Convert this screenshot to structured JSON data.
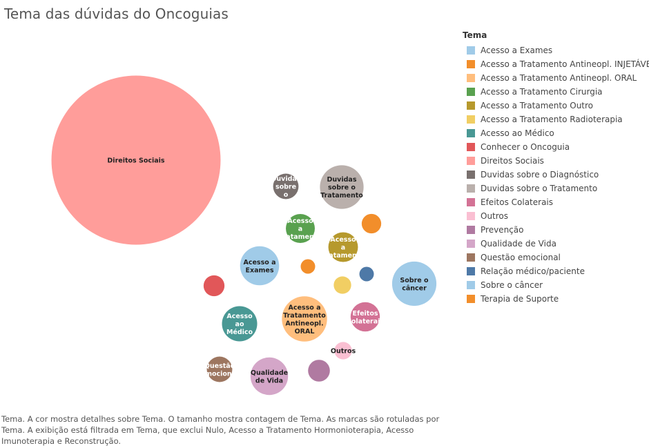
{
  "chart_data": {
    "type": "bubble",
    "title": "Tema das dúvidas do Oncoguias",
    "legend_title": "Tema",
    "legend_position": "right",
    "caption": "Tema.  A cor mostra detalhes sobre Tema.  O tamanho mostra contagem de Tema.  As marcas são rotuladas por Tema. A exibição está filtrada em Tema, que exclui Nulo, Acesso a Tratamento Hormonioterapia, Acesso Imunoterapia e Reconstrução.",
    "series": [
      {
        "name": "Acesso a Exames",
        "label": "Acesso a Exames",
        "color": "#a0cbe8",
        "relative_size": 8.0
      },
      {
        "name": "Acesso a Tratamento Antineopl. INJETÁVEL",
        "label": "",
        "color": "#f28e2b",
        "relative_size": 2.0
      },
      {
        "name": "Acesso a Tratamento Antineopl. ORAL",
        "label": "Acesso a Tratamento Antineopl. ORAL",
        "color": "#ffbe7d",
        "relative_size": 10.7
      },
      {
        "name": "Acesso a Tratamento Cirurgia",
        "label": "Acesso a Tratamento",
        "color": "#59a14f",
        "relative_size": 4.4
      },
      {
        "name": "Acesso a Tratamento Outro",
        "label": "Acesso a Tratamento",
        "color": "#b6992d",
        "relative_size": 4.6
      },
      {
        "name": "Acesso a Tratamento Radioterapia",
        "label": "",
        "color": "#f1ce63",
        "relative_size": 1.6
      },
      {
        "name": "Acesso ao Médico",
        "label": "Acesso ao Médico",
        "color": "#499894",
        "relative_size": 6.5
      },
      {
        "name": "Conhecer o Oncoguia",
        "label": "",
        "color": "#e15759",
        "relative_size": 2.3
      },
      {
        "name": "Direitos Sociais",
        "label": "Direitos Sociais",
        "color": "#ff9d9a",
        "relative_size": 150.0
      },
      {
        "name": "Duvidas sobre o Diagnóstico",
        "label": "Duvidas sobre o",
        "color": "#79706e",
        "relative_size": 3.4
      },
      {
        "name": "Duvidas sobre o Tratamento",
        "label": "Duvidas sobre o Tratamento",
        "color": "#bab0ac",
        "relative_size": 10.0
      },
      {
        "name": "Efeitos Colaterais",
        "label": "Efeitos Colaterais",
        "color": "#d37295",
        "relative_size": 4.5
      },
      {
        "name": "Outros",
        "label": "Outros",
        "color": "#fabfd2",
        "relative_size": 1.6
      },
      {
        "name": "Prevenção",
        "label": "",
        "color": "#b07aa1",
        "relative_size": 2.5
      },
      {
        "name": "Qualidade de Vida",
        "label": "Qualidade de Vida",
        "color": "#d4a6c8",
        "relative_size": 7.4
      },
      {
        "name": "Questão emocional",
        "label": "Questão emocional",
        "color": "#9d7660",
        "relative_size": 3.4
      },
      {
        "name": "Relação médico/paciente",
        "label": "",
        "color": "#4e79a7",
        "relative_size": 1.1
      },
      {
        "name": "Sobre o câncer",
        "label": "Sobre o câncer",
        "color": "#a0cbe8",
        "relative_size": 10.3
      },
      {
        "name": "Terapia de Suporte",
        "label": "",
        "color": "#f28e2b",
        "relative_size": 1.1
      }
    ]
  }
}
